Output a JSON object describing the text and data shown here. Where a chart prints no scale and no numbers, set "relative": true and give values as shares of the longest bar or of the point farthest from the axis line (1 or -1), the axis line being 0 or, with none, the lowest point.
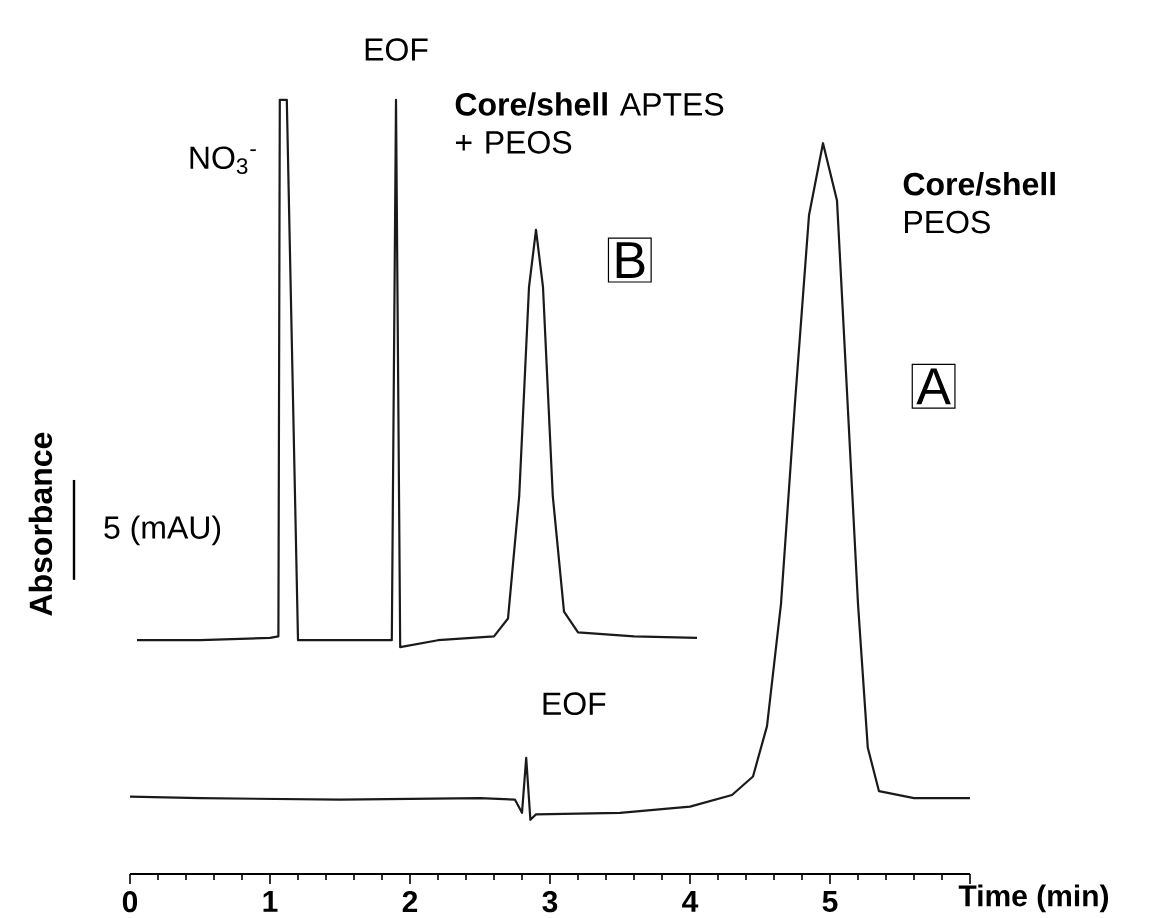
{
  "chart_data": {
    "type": "line",
    "relative": true,
    "xlabel": "Time (min)",
    "ylabel": "Absorbance",
    "xlim": [
      0,
      6
    ],
    "xticks": [
      0,
      1,
      2,
      3,
      4,
      5,
      {
        "value": 6,
        "label": null
      }
    ],
    "marker": "none",
    "line_style": "solid",
    "series": [
      {
        "name": "A",
        "color": "#1a1a1a",
        "x": [
          0.0,
          0.5,
          1.5,
          2.5,
          2.75,
          2.8,
          2.83,
          2.86,
          2.9,
          3.5,
          4.0,
          4.3,
          4.45,
          4.55,
          4.65,
          4.75,
          4.85,
          4.95,
          5.05,
          5.12,
          5.2,
          5.27,
          5.35,
          5.6,
          6.0
        ],
        "values": [
          0.1,
          0.098,
          0.096,
          0.098,
          0.096,
          0.079,
          0.15,
          0.07,
          0.077,
          0.079,
          0.087,
          0.102,
          0.126,
          0.191,
          0.349,
          0.609,
          0.851,
          0.944,
          0.87,
          0.628,
          0.349,
          0.163,
          0.107,
          0.098,
          0.098
        ]
      },
      {
        "name": "B",
        "color": "#1a1a1a",
        "x": [
          0.05,
          0.5,
          1.0,
          1.06,
          1.07,
          1.12,
          1.2,
          1.5,
          1.87,
          1.9,
          1.93,
          2.2,
          2.6,
          2.7,
          2.78,
          2.85,
          2.9,
          2.95,
          3.02,
          3.1,
          3.2,
          3.6,
          4.05
        ],
        "values": [
          0.302,
          0.302,
          0.305,
          0.307,
          1,
          1,
          0.302,
          0.302,
          0.302,
          1,
          0.293,
          0.302,
          0.307,
          0.33,
          0.488,
          0.758,
          0.832,
          0.758,
          0.488,
          0.339,
          0.312,
          0.307,
          0.305
        ]
      }
    ],
    "annotations": [
      {
        "text": "EOF",
        "x": 1.9,
        "y": 1
      },
      {
        "text": "NO$_{3}$$^{-}$",
        "x": 1.07,
        "y": 1
      },
      "**Core/shell** APTES + PEOS",
      {
        "text": "EOF",
        "x": 2.83,
        "y": 0.15
      },
      "**Core/shell** PEOS",
      "5 (mAU)"
    ]
  }
}
